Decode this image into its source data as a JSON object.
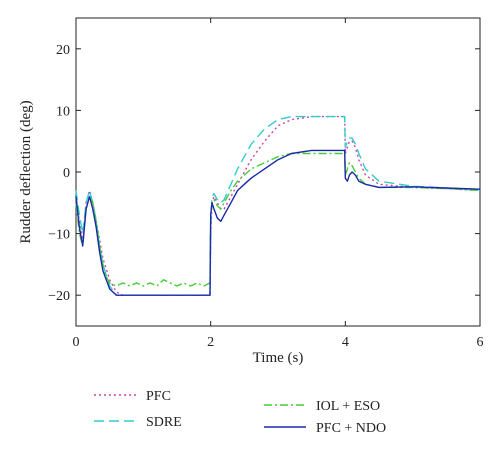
{
  "chart_data": {
    "type": "line",
    "xlabel": "Time (s)",
    "ylabel": "Rudder deflection (deg)",
    "xlim": [
      0,
      6
    ],
    "ylim": [
      -25,
      25
    ],
    "xticks": [
      0,
      2,
      4,
      6
    ],
    "yticks": [
      -20,
      -10,
      0,
      10,
      20
    ],
    "grid": false,
    "legend_position": "bottom",
    "series": [
      {
        "name": "PFC",
        "color": "#cc44aa",
        "dash": "2,3",
        "x": [
          0,
          0.05,
          0.1,
          0.15,
          0.2,
          0.25,
          0.3,
          0.35,
          0.4,
          0.5,
          0.6,
          0.7,
          0.8,
          1.0,
          1.5,
          1.99,
          2.0,
          2.02,
          2.05,
          2.1,
          2.15,
          2.2,
          2.3,
          2.4,
          2.5,
          2.6,
          2.8,
          3.0,
          3.2,
          3.5,
          3.8,
          3.99,
          4.0,
          4.03,
          4.06,
          4.1,
          4.15,
          4.2,
          4.3,
          4.5,
          5.0,
          5.5,
          6.0
        ],
        "y": [
          -4,
          -8,
          -11,
          -5,
          -3,
          -5,
          -8,
          -11,
          -14,
          -17.5,
          -19.5,
          -20,
          -20,
          -20,
          -20,
          -20,
          -10,
          -5,
          -4,
          -5,
          -6,
          -6,
          -4,
          -2,
          0,
          2,
          5,
          7.5,
          8.5,
          9,
          9,
          9,
          3,
          4,
          5,
          5,
          4,
          2,
          -0.5,
          -2,
          -2.5,
          -2.7,
          -3
        ]
      },
      {
        "name": "SDRE",
        "color": "#33cccc",
        "dash": "10,5",
        "x": [
          0,
          0.05,
          0.1,
          0.15,
          0.2,
          0.25,
          0.3,
          0.35,
          0.4,
          0.5,
          0.6,
          0.7,
          0.8,
          1.0,
          1.5,
          1.99,
          2.0,
          2.02,
          2.05,
          2.1,
          2.15,
          2.2,
          2.3,
          2.4,
          2.5,
          2.6,
          2.8,
          3.0,
          3.2,
          3.5,
          3.8,
          3.99,
          4.0,
          4.03,
          4.06,
          4.1,
          4.15,
          4.2,
          4.3,
          4.5,
          5.0,
          5.5,
          6.0
        ],
        "y": [
          -3,
          -7,
          -10,
          -5,
          -3,
          -5,
          -8,
          -12,
          -15,
          -18.5,
          -20,
          -20,
          -20,
          -20,
          -20,
          -20,
          -9,
          -4,
          -3.5,
          -4.5,
          -5,
          -4.5,
          -2,
          0.5,
          2.5,
          4.5,
          7,
          8.5,
          9,
          9,
          9,
          9,
          4,
          5,
          5.5,
          5.5,
          4.5,
          3,
          0.5,
          -1.5,
          -2.3,
          -2.6,
          -2.9
        ]
      },
      {
        "name": "IOL + ESO",
        "color": "#44cc33",
        "dash": "8,3,2,3",
        "x": [
          0,
          0.05,
          0.1,
          0.15,
          0.2,
          0.25,
          0.3,
          0.35,
          0.4,
          0.45,
          0.5,
          0.6,
          0.7,
          0.8,
          0.9,
          1.0,
          1.1,
          1.2,
          1.3,
          1.4,
          1.5,
          1.6,
          1.7,
          1.8,
          1.9,
          1.99,
          2.0,
          2.02,
          2.05,
          2.1,
          2.15,
          2.2,
          2.3,
          2.4,
          2.5,
          2.6,
          2.8,
          3.0,
          3.2,
          3.5,
          3.8,
          3.99,
          4.0,
          4.03,
          4.06,
          4.1,
          4.15,
          4.2,
          4.3,
          4.5,
          5.0,
          5.5,
          6.0
        ],
        "y": [
          -5,
          -10,
          -12,
          -6,
          -4,
          -5,
          -8,
          -12,
          -15,
          -17,
          -18,
          -18.5,
          -18,
          -18.5,
          -18,
          -18.5,
          -18,
          -18.5,
          -17.5,
          -18,
          -18.5,
          -18,
          -18.5,
          -18,
          -18.5,
          -18,
          -7,
          -5,
          -4.5,
          -5.5,
          -6,
          -5,
          -3,
          -1.5,
          -0.5,
          0.5,
          1.5,
          2.5,
          3,
          3,
          3,
          3,
          -0.5,
          0.5,
          1.5,
          1,
          0,
          -1,
          -2,
          -2.5,
          -2.5,
          -2.7,
          -3
        ]
      },
      {
        "name": "PFC + NDO",
        "color": "#1a2aa8",
        "dash": "",
        "x": [
          0,
          0.05,
          0.1,
          0.15,
          0.2,
          0.25,
          0.3,
          0.35,
          0.4,
          0.5,
          0.6,
          0.7,
          0.8,
          1.0,
          1.5,
          1.99,
          2.0,
          2.02,
          2.05,
          2.1,
          2.15,
          2.2,
          2.3,
          2.4,
          2.5,
          2.6,
          2.8,
          3.0,
          3.2,
          3.5,
          3.8,
          3.99,
          4.0,
          4.03,
          4.06,
          4.1,
          4.15,
          4.2,
          4.3,
          4.5,
          5.0,
          5.5,
          6.0
        ],
        "y": [
          -4,
          -9,
          -12,
          -6,
          -4,
          -6,
          -9,
          -13,
          -16,
          -19,
          -20,
          -20,
          -20,
          -20,
          -20,
          -20,
          -7,
          -5,
          -6,
          -7.5,
          -8,
          -7,
          -5,
          -3,
          -2,
          -1,
          0.5,
          2,
          3,
          3.5,
          3.5,
          3.5,
          -1,
          -1.5,
          -0.5,
          0,
          -0.5,
          -1.5,
          -2,
          -2.5,
          -2.4,
          -2.6,
          -2.8
        ]
      }
    ]
  }
}
